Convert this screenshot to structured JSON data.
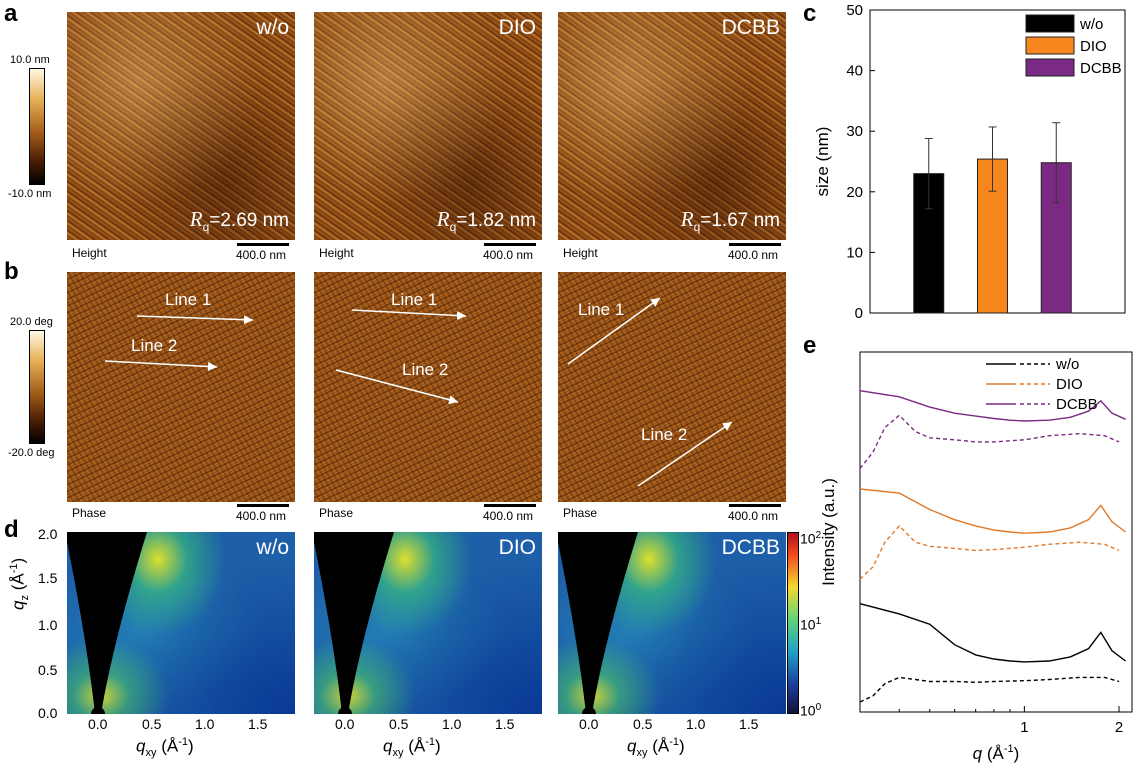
{
  "panels": {
    "a": "a",
    "b": "b",
    "c": "c",
    "d": "d",
    "e": "e"
  },
  "samples": [
    "w/o",
    "DIO",
    "DCBB"
  ],
  "afm_height": {
    "colorbar_top": "10.0 nm",
    "colorbar_bottom": "-10.0 nm",
    "type_label": "Height",
    "scale": "400.0 nm",
    "rq_symbol": "R",
    "rq_sub": "q",
    "rq_values": [
      "=2.69 nm",
      "=1.82 nm",
      "=1.67 nm"
    ]
  },
  "afm_phase": {
    "colorbar_top": "20.0 deg",
    "colorbar_bottom": "-20.0 deg",
    "type_label": "Phase",
    "scale": "400.0 nm",
    "line1": "Line 1",
    "line2": "Line 2"
  },
  "giwaxs": {
    "y_ticks": [
      "2.0",
      "1.5",
      "1.0",
      "0.5",
      "0.0"
    ],
    "x_ticks": [
      "0.0",
      "0.5",
      "1.0",
      "1.5"
    ],
    "ylabel_main": "q",
    "ylabel_sub": "z",
    "ylabel_unit": "(Å",
    "ylabel_exp": "-1",
    "ylabel_close": ")",
    "xlabel_main": "q",
    "xlabel_sub": "xy",
    "xlabel_unit": "(Å",
    "xlabel_exp": "-1",
    "xlabel_close": ")",
    "cbar_base": "10",
    "cbar_exps": [
      "2",
      "1",
      "0"
    ]
  },
  "chart_data": [
    {
      "type": "bar",
      "panel": "c",
      "categories": [
        "w/o",
        "DIO",
        "DCBB"
      ],
      "values": [
        23.0,
        25.4,
        24.8
      ],
      "errors": [
        5.8,
        5.3,
        6.6
      ],
      "colors": [
        "#000000",
        "#f7861e",
        "#7a2a83"
      ],
      "ylabel": "size (nm)",
      "ylim": [
        0,
        50
      ],
      "yticks": [
        "0",
        "10",
        "20",
        "30",
        "40",
        "50"
      ],
      "legend": [
        "w/o",
        "DIO",
        "DCBB"
      ]
    },
    {
      "type": "line",
      "panel": "e",
      "xscale": "log",
      "xlim": [
        0.3,
        2.2
      ],
      "xticks": [
        "1",
        "2"
      ],
      "xlabel_main": "q",
      "xlabel_unit": "(Å",
      "xlabel_exp": "-1",
      "xlabel_close": ")",
      "ylabel": "Intensity (a.u.)",
      "legend": [
        "w/o",
        "DIO",
        "DCBB"
      ],
      "colors": {
        "w/o": "#000000",
        "DIO": "#e07a2a",
        "DCBB": "#7a2a83"
      },
      "series": [
        {
          "name": "DCBB",
          "style": "solid",
          "x": [
            0.3,
            0.4,
            0.5,
            0.6,
            0.7,
            0.8,
            0.9,
            1.0,
            1.2,
            1.4,
            1.6,
            1.75,
            1.9,
            2.1
          ],
          "values": [
            7.6,
            7.45,
            7.2,
            7.05,
            6.98,
            6.92,
            6.88,
            6.86,
            6.88,
            6.95,
            7.1,
            7.35,
            7.05,
            6.9
          ]
        },
        {
          "name": "DCBB",
          "style": "dashed",
          "x": [
            0.3,
            0.33,
            0.36,
            0.4,
            0.45,
            0.5,
            0.6,
            0.7,
            0.8,
            1.0,
            1.2,
            1.5,
            1.8,
            2.0
          ],
          "values": [
            5.7,
            6.1,
            6.7,
            7.0,
            6.6,
            6.45,
            6.4,
            6.35,
            6.35,
            6.4,
            6.5,
            6.55,
            6.5,
            6.35
          ]
        },
        {
          "name": "DIO",
          "style": "solid",
          "x": [
            0.3,
            0.4,
            0.5,
            0.6,
            0.7,
            0.8,
            0.9,
            1.0,
            1.2,
            1.4,
            1.6,
            1.75,
            1.9,
            2.1
          ],
          "values": [
            5.2,
            5.1,
            4.7,
            4.45,
            4.3,
            4.2,
            4.15,
            4.12,
            4.15,
            4.25,
            4.45,
            4.8,
            4.4,
            4.15
          ]
        },
        {
          "name": "DIO",
          "style": "dashed",
          "x": [
            0.3,
            0.33,
            0.36,
            0.4,
            0.45,
            0.5,
            0.6,
            0.7,
            0.8,
            1.0,
            1.2,
            1.5,
            1.8,
            2.0
          ],
          "values": [
            3.0,
            3.3,
            3.9,
            4.3,
            3.9,
            3.8,
            3.75,
            3.7,
            3.72,
            3.78,
            3.85,
            3.9,
            3.85,
            3.7
          ]
        },
        {
          "name": "w/o",
          "style": "solid",
          "x": [
            0.3,
            0.4,
            0.5,
            0.6,
            0.7,
            0.8,
            0.9,
            1.0,
            1.2,
            1.4,
            1.6,
            1.75,
            1.9,
            2.1
          ],
          "values": [
            2.4,
            2.15,
            1.9,
            1.4,
            1.15,
            1.05,
            1.0,
            0.98,
            1.0,
            1.1,
            1.3,
            1.7,
            1.25,
            1.0
          ]
        },
        {
          "name": "w/o",
          "style": "dashed",
          "x": [
            0.3,
            0.33,
            0.36,
            0.4,
            0.45,
            0.5,
            0.6,
            0.7,
            0.8,
            1.0,
            1.2,
            1.5,
            1.8,
            2.0
          ],
          "values": [
            0.0,
            0.15,
            0.45,
            0.6,
            0.55,
            0.5,
            0.5,
            0.48,
            0.5,
            0.52,
            0.55,
            0.6,
            0.6,
            0.5
          ]
        }
      ]
    }
  ]
}
